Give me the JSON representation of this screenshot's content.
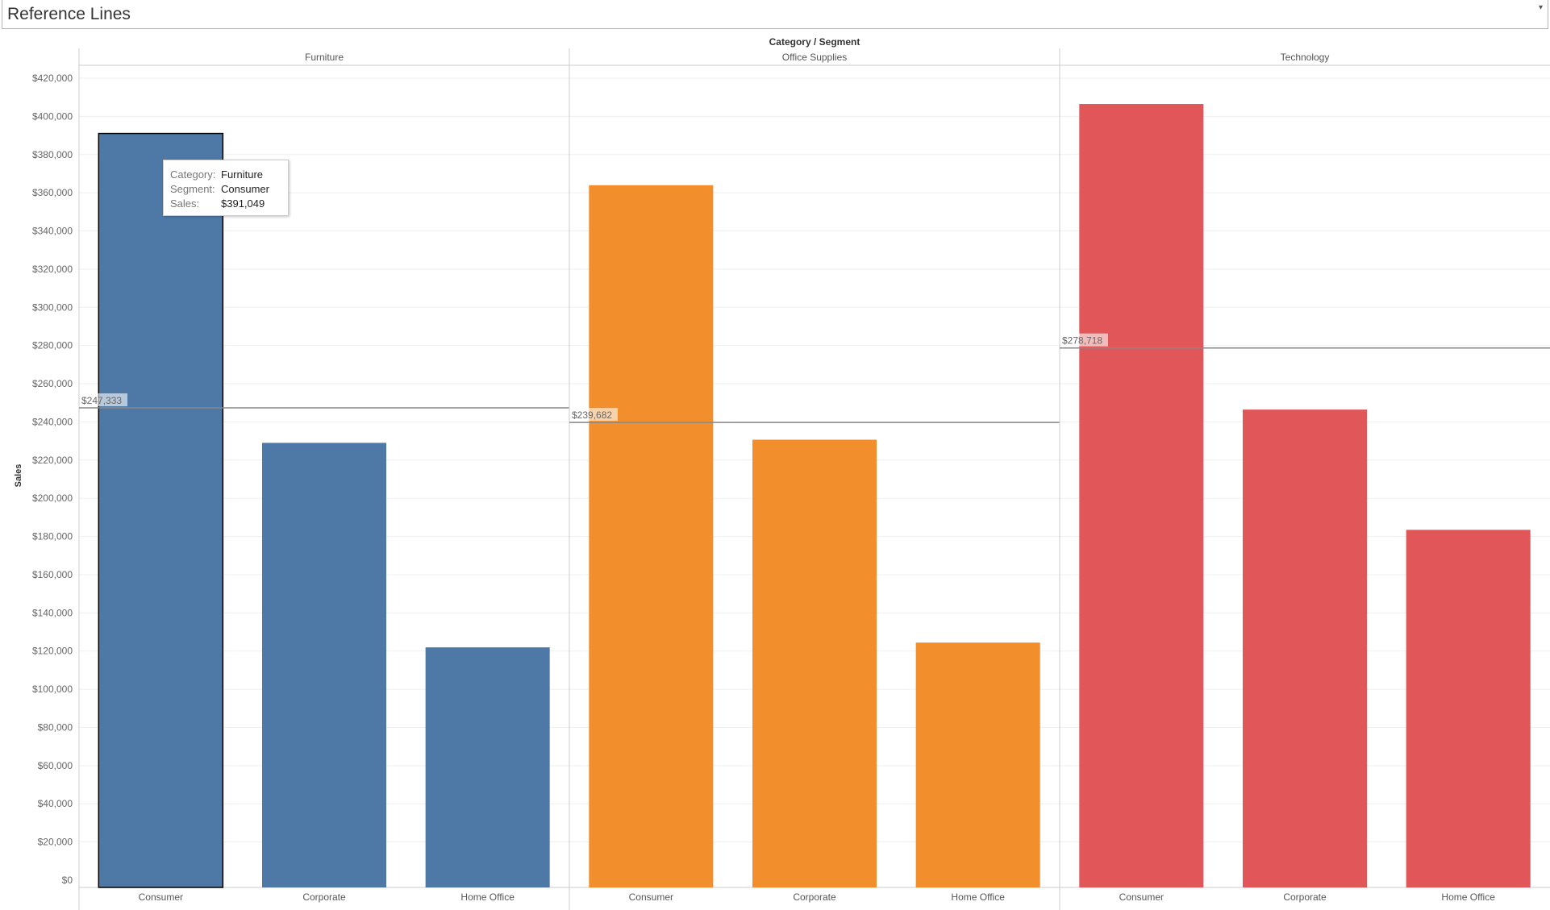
{
  "title": "Reference Lines",
  "chart_data": {
    "type": "bar",
    "header": "Category / Segment",
    "ylabel": "Sales",
    "ylim": [
      0,
      420000
    ],
    "yticks": [
      "$0",
      "$20,000",
      "$40,000",
      "$60,000",
      "$80,000",
      "$100,000",
      "$120,000",
      "$140,000",
      "$160,000",
      "$180,000",
      "$200,000",
      "$220,000",
      "$240,000",
      "$260,000",
      "$280,000",
      "$300,000",
      "$320,000",
      "$340,000",
      "$360,000",
      "$380,000",
      "$400,000",
      "$420,000"
    ],
    "grid": true,
    "panes": [
      {
        "category": "Furniture",
        "color": "#4e79a7",
        "segments": [
          "Consumer",
          "Corporate",
          "Home Office"
        ],
        "values": [
          391049,
          229020,
          121930
        ],
        "reference_line": {
          "value": 247333,
          "label": "$247,333"
        }
      },
      {
        "category": "Office Supplies",
        "color": "#f28e2b",
        "segments": [
          "Consumer",
          "Corporate",
          "Home Office"
        ],
        "values": [
          363952,
          230676,
          124418
        ],
        "reference_line": {
          "value": 239682,
          "label": "$239,682"
        }
      },
      {
        "category": "Technology",
        "color": "#e15759",
        "segments": [
          "Consumer",
          "Corporate",
          "Home Office"
        ],
        "values": [
          406480,
          246450,
          183470
        ],
        "reference_line": {
          "value": 278718,
          "label": "$278,718"
        }
      }
    ]
  },
  "tooltip": {
    "category_label": "Category:",
    "category": "Furniture",
    "segment_label": "Segment:",
    "segment": "Consumer",
    "sales_label": "Sales:",
    "sales": "$391,049"
  }
}
